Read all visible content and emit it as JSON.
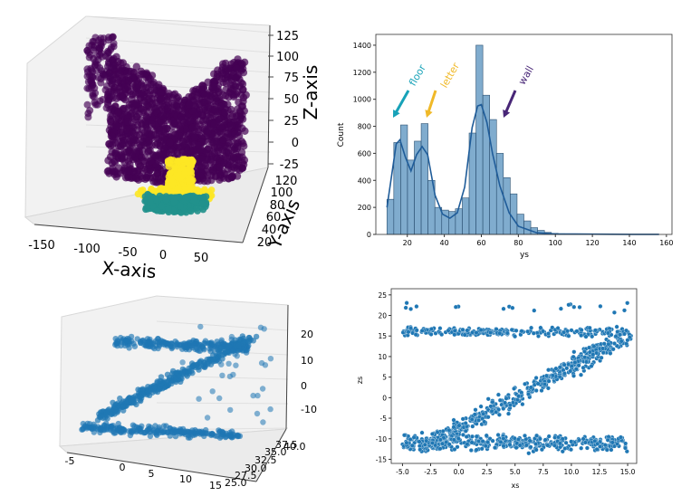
{
  "chart_data": [
    {
      "type": "scatter",
      "projection": "3d",
      "xlabel": "X-axis",
      "ylabel": "Y-axis",
      "zlabel": "Z-axis",
      "x_ticks": [
        "-150",
        "-100",
        "-50",
        "0",
        "50"
      ],
      "y_ticks": [
        "20",
        "40",
        "60",
        "80",
        "100",
        "120"
      ],
      "z_ticks": [
        "-25",
        "0",
        "25",
        "50",
        "75",
        "100",
        "125"
      ],
      "colormap": "viridis",
      "clusters": [
        {
          "color": "#440154",
          "x": [
            -110,
            80
          ],
          "y": [
            20,
            120
          ],
          "z": [
            -10,
            128
          ]
        },
        {
          "color": "#fde725",
          "x": [
            -30,
            20
          ],
          "y": [
            40,
            100
          ],
          "z": [
            -30,
            0
          ]
        },
        {
          "color": "#21918c",
          "x": [
            -40,
            10
          ],
          "y": [
            20,
            90
          ],
          "z": [
            -40,
            -25
          ]
        }
      ]
    },
    {
      "type": "bar",
      "subtype": "histogram_with_kde",
      "xlabel": "ys",
      "ylabel": "Count",
      "xlim": [
        3,
        163
      ],
      "ylim": [
        0,
        1480
      ],
      "x_ticks": [
        20,
        40,
        60,
        80,
        100,
        120,
        140,
        160
      ],
      "y_ticks": [
        0,
        200,
        400,
        600,
        800,
        1000,
        1200,
        1400
      ],
      "bin_width": 3.7,
      "bin_start": 9,
      "values": [
        260,
        680,
        810,
        550,
        690,
        820,
        400,
        200,
        180,
        170,
        190,
        270,
        750,
        1400,
        1030,
        850,
        600,
        420,
        300,
        150,
        100,
        50,
        30,
        15,
        8,
        5,
        3,
        2,
        1,
        1,
        1,
        0,
        0,
        0,
        0,
        0,
        0,
        0
      ],
      "kde": [
        [
          9,
          200
        ],
        [
          12,
          480
        ],
        [
          14,
          670
        ],
        [
          16,
          700
        ],
        [
          19,
          570
        ],
        [
          22,
          470
        ],
        [
          25,
          590
        ],
        [
          28,
          650
        ],
        [
          31,
          590
        ],
        [
          35,
          290
        ],
        [
          39,
          150
        ],
        [
          43,
          120
        ],
        [
          47,
          160
        ],
        [
          51,
          350
        ],
        [
          55,
          790
        ],
        [
          58,
          950
        ],
        [
          60,
          960
        ],
        [
          63,
          830
        ],
        [
          66,
          600
        ],
        [
          70,
          360
        ],
        [
          75,
          160
        ],
        [
          80,
          60
        ],
        [
          90,
          12
        ],
        [
          100,
          4
        ],
        [
          120,
          2
        ],
        [
          140,
          1
        ],
        [
          156,
          1
        ]
      ],
      "bar_color": "#6a9ec5",
      "line_color": "#1f5c99",
      "annotations": [
        {
          "text": "floor",
          "color": "#17a2b8"
        },
        {
          "text": "letter",
          "color": "#f0b928"
        },
        {
          "text": "wall",
          "color": "#482677"
        }
      ]
    },
    {
      "type": "scatter",
      "projection": "3d",
      "x_ticks": [
        "-5",
        "0",
        "5",
        "10",
        "15"
      ],
      "y_ticks": [
        "25.0",
        "27.5",
        "30.0",
        "32.5",
        "35.0",
        "37.5",
        "40.0"
      ],
      "z_ticks": [
        "-10",
        "0",
        "10",
        "20"
      ],
      "color": "#1f77b4"
    },
    {
      "type": "scatter",
      "xlabel": "xs",
      "ylabel": "zs",
      "xlim": [
        -6,
        15.8
      ],
      "ylim": [
        -16,
        26.5
      ],
      "x_ticks": [
        -5.0,
        -2.5,
        0.0,
        2.5,
        5.0,
        7.5,
        10.0,
        12.5,
        15.0
      ],
      "x_tick_labels": [
        "-5.0",
        "-2.5",
        "0.0",
        "2.5",
        "5.0",
        "7.5",
        "10.0",
        "12.5",
        "15.0"
      ],
      "y_ticks": [
        -15,
        -10,
        -5,
        0,
        5,
        10,
        15,
        20,
        25
      ],
      "color": "#1f77b4",
      "structure": "Z-shaped point cloud: top band near zs=16 for xs in [-5, 15]; diagonal band from (-3, -12) to (15, 15); bottom band near zs=-11 for xs in [-5, 15]"
    }
  ]
}
